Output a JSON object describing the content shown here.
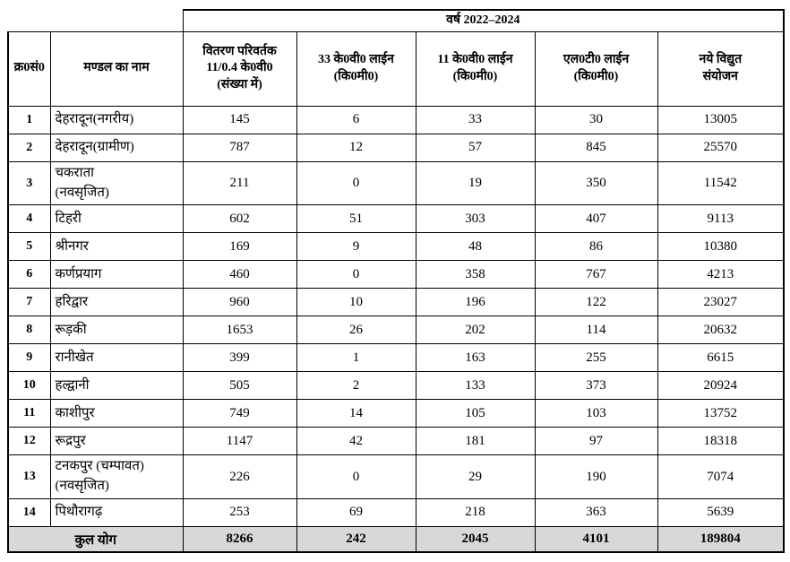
{
  "table": {
    "year_header": "वर्ष 2022–2024",
    "columns": {
      "serial": "क्र0सं0",
      "division": "मण्डल का नाम",
      "transformer": [
        "वितरण परिवर्तक",
        "11/0.4 के0वी0",
        "(संख्या में)"
      ],
      "kv33": [
        "33 के0वी0 लाईन",
        "(कि0मी0)"
      ],
      "kv11": [
        "11 के0वी0 लाईन",
        "(कि0मी0)"
      ],
      "lt": [
        "एल0टी0 लाईन",
        "(कि0मी0)"
      ],
      "connections": [
        "नये विद्युत",
        "संयोजन"
      ]
    },
    "rows": [
      {
        "sno": "1",
        "name": "देहरादून(नगरीय)",
        "transformers": "145",
        "kv33": "6",
        "kv11": "33",
        "lt": "30",
        "connections": "13005"
      },
      {
        "sno": "2",
        "name": "देहरादून(ग्रामीण)",
        "transformers": "787",
        "kv33": "12",
        "kv11": "57",
        "lt": "845",
        "connections": "25570"
      },
      {
        "sno": "3",
        "name": "चकराता\n(नवसृजित)",
        "transformers": "211",
        "kv33": "0",
        "kv11": "19",
        "lt": "350",
        "connections": "11542"
      },
      {
        "sno": "4",
        "name": "टिहरी",
        "transformers": "602",
        "kv33": "51",
        "kv11": "303",
        "lt": "407",
        "connections": "9113"
      },
      {
        "sno": "5",
        "name": "श्रीनगर",
        "transformers": "169",
        "kv33": "9",
        "kv11": "48",
        "lt": "86",
        "connections": "10380"
      },
      {
        "sno": "6",
        "name": "कर्णप्रयाग",
        "transformers": "460",
        "kv33": "0",
        "kv11": "358",
        "lt": "767",
        "connections": "4213"
      },
      {
        "sno": "7",
        "name": "हरिद्वार",
        "transformers": "960",
        "kv33": "10",
        "kv11": "196",
        "lt": "122",
        "connections": "23027"
      },
      {
        "sno": "8",
        "name": "रूड़की",
        "transformers": "1653",
        "kv33": "26",
        "kv11": "202",
        "lt": "114",
        "connections": "20632"
      },
      {
        "sno": "9",
        "name": "रानीखेत",
        "transformers": "399",
        "kv33": "1",
        "kv11": "163",
        "lt": "255",
        "connections": "6615"
      },
      {
        "sno": "10",
        "name": "हल्द्वानी",
        "transformers": "505",
        "kv33": "2",
        "kv11": "133",
        "lt": "373",
        "connections": "20924"
      },
      {
        "sno": "11",
        "name": "काशीपुर",
        "transformers": "749",
        "kv33": "14",
        "kv11": "105",
        "lt": "103",
        "connections": "13752"
      },
      {
        "sno": "12",
        "name": "रूद्रपुर",
        "transformers": "1147",
        "kv33": "42",
        "kv11": "181",
        "lt": "97",
        "connections": "18318"
      },
      {
        "sno": "13",
        "name": "टनकपुर (चम्पावत)\n(नवसृजित)",
        "transformers": "226",
        "kv33": "0",
        "kv11": "29",
        "lt": "190",
        "connections": "7074"
      },
      {
        "sno": "14",
        "name": "पिथौरागढ़",
        "transformers": "253",
        "kv33": "69",
        "kv11": "218",
        "lt": "363",
        "connections": "5639"
      }
    ],
    "total": {
      "label": "कुल योग",
      "transformers": "8266",
      "kv33": "242",
      "kv11": "2045",
      "lt": "4101",
      "connections": "189804"
    }
  }
}
